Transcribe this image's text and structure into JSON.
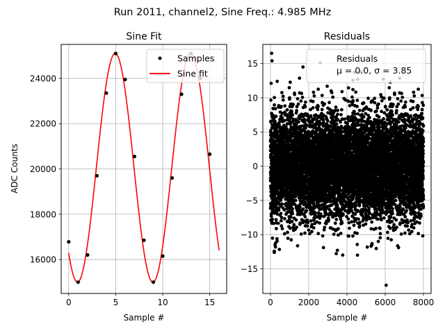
{
  "suptitle": "Run 2011, channel2, Sine Freq.: 4.985 MHz",
  "chart_data": [
    {
      "type": "scatter",
      "title": "Sine Fit",
      "xlabel": "Sample #",
      "ylabel": "ADC Counts",
      "xlim": [
        -0.8,
        16.8
      ],
      "ylim": [
        14500,
        25500
      ],
      "xticks": [
        0,
        5,
        10,
        15
      ],
      "yticks": [
        16000,
        18000,
        20000,
        22000,
        24000
      ],
      "grid": true,
      "legend": "top-right",
      "series": [
        {
          "name": "Samples",
          "kind": "points",
          "color": "#000000",
          "x": [
            0,
            1,
            2,
            3,
            4,
            5,
            6,
            7,
            8,
            9,
            10,
            11,
            12,
            13,
            14,
            15
          ],
          "y": [
            16780,
            15000,
            16200,
            19700,
            23350,
            25100,
            23950,
            20550,
            16850,
            15000,
            16150,
            19600,
            23300,
            25100,
            24000,
            20650
          ]
        },
        {
          "name": "Sine fit",
          "kind": "line",
          "color": "#ff0000",
          "fit": {
            "offset": 20050,
            "amplitude": 5050,
            "period_samples": 8.023,
            "phase_rad": -2.3
          },
          "x_range": [
            0,
            16
          ]
        }
      ]
    },
    {
      "type": "scatter",
      "title": "Residuals",
      "xlabel": "Sample #",
      "ylabel": "",
      "xlim": [
        -400,
        8400
      ],
      "ylim": [
        -18.6,
        17.8
      ],
      "xticks": [
        0,
        2000,
        4000,
        6000,
        8000
      ],
      "yticks": [
        -15,
        -10,
        -5,
        0,
        5,
        10,
        15
      ],
      "grid": true,
      "legend": "top-right",
      "legend_lines": [
        "Residuals",
        "μ = 0.0, σ = 3.85"
      ],
      "series": [
        {
          "name": "Residuals",
          "kind": "points",
          "color": "#000000",
          "distribution": {
            "mean": 0.0,
            "std": 3.85,
            "count": 8000,
            "x_range": [
              0,
              8000
            ]
          },
          "outliers": [
            [
              60,
              16.5
            ],
            [
              80,
              15.4
            ],
            [
              2600,
              15.1
            ],
            [
              1700,
              14.5
            ],
            [
              6050,
              -17.4
            ],
            [
              200,
              -12.6
            ],
            [
              4550,
              -13.0
            ],
            [
              3500,
              -12.3
            ],
            [
              6700,
              -11.9
            ],
            [
              5300,
              -11.5
            ]
          ]
        }
      ]
    }
  ]
}
